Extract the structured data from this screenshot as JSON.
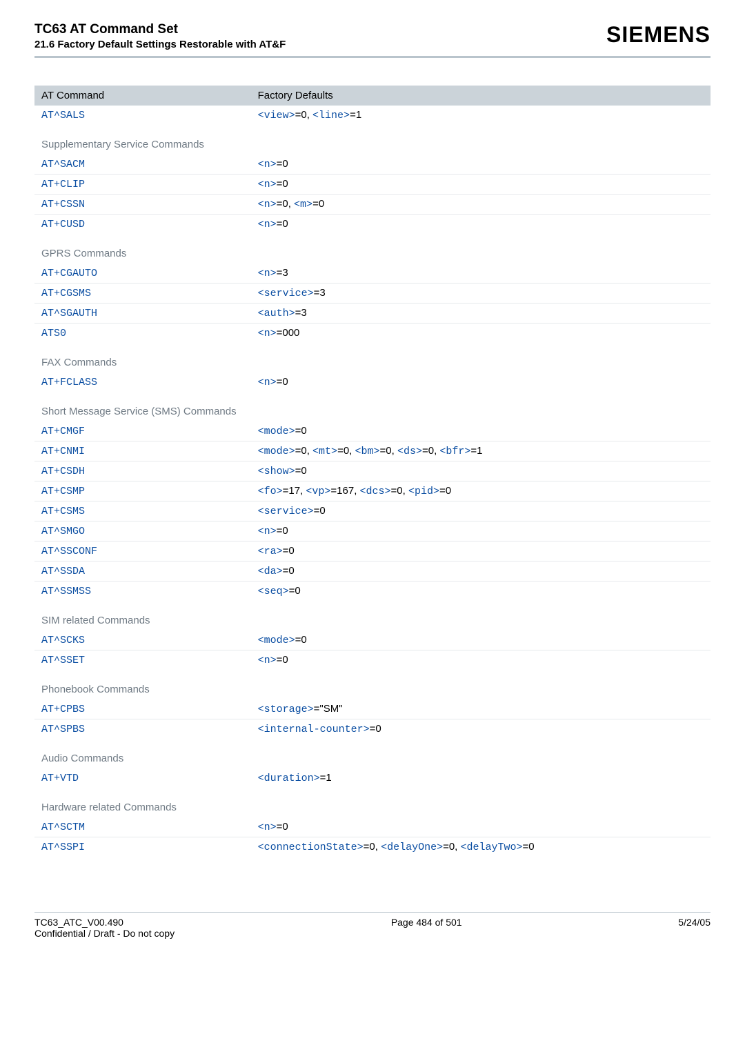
{
  "header": {
    "title": "TC63 AT Command Set",
    "subtitle": "21.6 Factory Default Settings Restorable with AT&F",
    "brand": "SIEMENS"
  },
  "table": {
    "head": {
      "c1": "AT Command",
      "c2": "Factory Defaults"
    },
    "topRow": {
      "cmd": "AT^SALS",
      "parts": [
        {
          "t": "param",
          "v": "<view>"
        },
        {
          "t": "plain",
          "v": "=0, "
        },
        {
          "t": "param",
          "v": "<line>"
        },
        {
          "t": "plain",
          "v": "=1"
        }
      ]
    },
    "sections": [
      {
        "title": "Supplementary Service Commands",
        "rows": [
          {
            "cmd": "AT^SACM",
            "parts": [
              {
                "t": "param",
                "v": "<n>"
              },
              {
                "t": "plain",
                "v": "=0"
              }
            ]
          },
          {
            "cmd": "AT+CLIP",
            "parts": [
              {
                "t": "param",
                "v": "<n>"
              },
              {
                "t": "plain",
                "v": "=0"
              }
            ]
          },
          {
            "cmd": "AT+CSSN",
            "parts": [
              {
                "t": "param",
                "v": "<n>"
              },
              {
                "t": "plain",
                "v": "=0, "
              },
              {
                "t": "param",
                "v": "<m>"
              },
              {
                "t": "plain",
                "v": "=0"
              }
            ]
          },
          {
            "cmd": "AT+CUSD",
            "parts": [
              {
                "t": "param",
                "v": "<n>"
              },
              {
                "t": "plain",
                "v": "=0"
              }
            ]
          }
        ]
      },
      {
        "title": "GPRS Commands",
        "rows": [
          {
            "cmd": "AT+CGAUTO",
            "parts": [
              {
                "t": "param",
                "v": "<n>"
              },
              {
                "t": "plain",
                "v": "=3"
              }
            ]
          },
          {
            "cmd": "AT+CGSMS",
            "parts": [
              {
                "t": "param",
                "v": "<service>"
              },
              {
                "t": "plain",
                "v": "=3"
              }
            ]
          },
          {
            "cmd": "AT^SGAUTH",
            "parts": [
              {
                "t": "param",
                "v": "<auth>"
              },
              {
                "t": "plain",
                "v": "=3"
              }
            ]
          },
          {
            "cmd": "ATS0",
            "parts": [
              {
                "t": "param",
                "v": "<n>"
              },
              {
                "t": "plain",
                "v": "=000"
              }
            ]
          }
        ]
      },
      {
        "title": "FAX Commands",
        "rows": [
          {
            "cmd": "AT+FCLASS",
            "parts": [
              {
                "t": "param",
                "v": "<n>"
              },
              {
                "t": "plain",
                "v": "=0"
              }
            ]
          }
        ]
      },
      {
        "title": "Short Message Service (SMS) Commands",
        "rows": [
          {
            "cmd": "AT+CMGF",
            "parts": [
              {
                "t": "param",
                "v": "<mode>"
              },
              {
                "t": "plain",
                "v": "=0"
              }
            ]
          },
          {
            "cmd": "AT+CNMI",
            "parts": [
              {
                "t": "param",
                "v": "<mode>"
              },
              {
                "t": "plain",
                "v": "=0, "
              },
              {
                "t": "param",
                "v": "<mt>"
              },
              {
                "t": "plain",
                "v": "=0, "
              },
              {
                "t": "param",
                "v": "<bm>"
              },
              {
                "t": "plain",
                "v": "=0, "
              },
              {
                "t": "param",
                "v": "<ds>"
              },
              {
                "t": "plain",
                "v": "=0, "
              },
              {
                "t": "param",
                "v": "<bfr>"
              },
              {
                "t": "plain",
                "v": "=1"
              }
            ]
          },
          {
            "cmd": "AT+CSDH",
            "parts": [
              {
                "t": "param",
                "v": "<show>"
              },
              {
                "t": "plain",
                "v": "=0"
              }
            ]
          },
          {
            "cmd": "AT+CSMP",
            "parts": [
              {
                "t": "param",
                "v": "<fo>"
              },
              {
                "t": "plain",
                "v": "=17, "
              },
              {
                "t": "param",
                "v": "<vp>"
              },
              {
                "t": "plain",
                "v": "=167, "
              },
              {
                "t": "param",
                "v": "<dcs>"
              },
              {
                "t": "plain",
                "v": "=0, "
              },
              {
                "t": "param",
                "v": "<pid>"
              },
              {
                "t": "plain",
                "v": "=0"
              }
            ]
          },
          {
            "cmd": "AT+CSMS",
            "parts": [
              {
                "t": "param",
                "v": "<service>"
              },
              {
                "t": "plain",
                "v": "=0"
              }
            ]
          },
          {
            "cmd": "AT^SMGO",
            "parts": [
              {
                "t": "param",
                "v": "<n>"
              },
              {
                "t": "plain",
                "v": "=0"
              }
            ]
          },
          {
            "cmd": "AT^SSCONF",
            "parts": [
              {
                "t": "param",
                "v": "<ra>"
              },
              {
                "t": "plain",
                "v": "=0"
              }
            ]
          },
          {
            "cmd": "AT^SSDA",
            "parts": [
              {
                "t": "param",
                "v": "<da>"
              },
              {
                "t": "plain",
                "v": "=0"
              }
            ]
          },
          {
            "cmd": "AT^SSMSS",
            "parts": [
              {
                "t": "param",
                "v": "<seq>"
              },
              {
                "t": "plain",
                "v": "=0"
              }
            ]
          }
        ]
      },
      {
        "title": "SIM related Commands",
        "rows": [
          {
            "cmd": "AT^SCKS",
            "parts": [
              {
                "t": "param",
                "v": "<mode>"
              },
              {
                "t": "plain",
                "v": "=0"
              }
            ]
          },
          {
            "cmd": "AT^SSET",
            "parts": [
              {
                "t": "param",
                "v": "<n>"
              },
              {
                "t": "plain",
                "v": "=0"
              }
            ]
          }
        ]
      },
      {
        "title": "Phonebook Commands",
        "rows": [
          {
            "cmd": "AT+CPBS",
            "parts": [
              {
                "t": "param",
                "v": "<storage>"
              },
              {
                "t": "plain",
                "v": "=\"SM\""
              }
            ]
          },
          {
            "cmd": "AT^SPBS",
            "parts": [
              {
                "t": "param",
                "v": "<internal-counter>"
              },
              {
                "t": "plain",
                "v": "=0"
              }
            ]
          }
        ]
      },
      {
        "title": "Audio Commands",
        "rows": [
          {
            "cmd": "AT+VTD",
            "parts": [
              {
                "t": "param",
                "v": "<duration>"
              },
              {
                "t": "plain",
                "v": "=1"
              }
            ]
          }
        ]
      },
      {
        "title": "Hardware related Commands",
        "rows": [
          {
            "cmd": "AT^SCTM",
            "parts": [
              {
                "t": "param",
                "v": "<n>"
              },
              {
                "t": "plain",
                "v": "=0"
              }
            ]
          },
          {
            "cmd": "AT^SSPI",
            "parts": [
              {
                "t": "param",
                "v": "<connectionState>"
              },
              {
                "t": "plain",
                "v": "=0, "
              },
              {
                "t": "param",
                "v": "<delayOne>"
              },
              {
                "t": "plain",
                "v": "=0, "
              },
              {
                "t": "param",
                "v": "<delayTwo>"
              },
              {
                "t": "plain",
                "v": "=0"
              }
            ]
          }
        ]
      }
    ]
  },
  "footer": {
    "left1": "TC63_ATC_V00.490",
    "left2": "Confidential / Draft - Do not copy",
    "mid": "Page 484 of 501",
    "right": "5/24/05"
  },
  "colors": {
    "brand": "#000000",
    "hr": "#b9c4cc",
    "headBg": "#cbd3d9",
    "sectionText": "#6f7a84",
    "link": "#0b4ea2",
    "rowBorder": "#e6e9ec"
  }
}
